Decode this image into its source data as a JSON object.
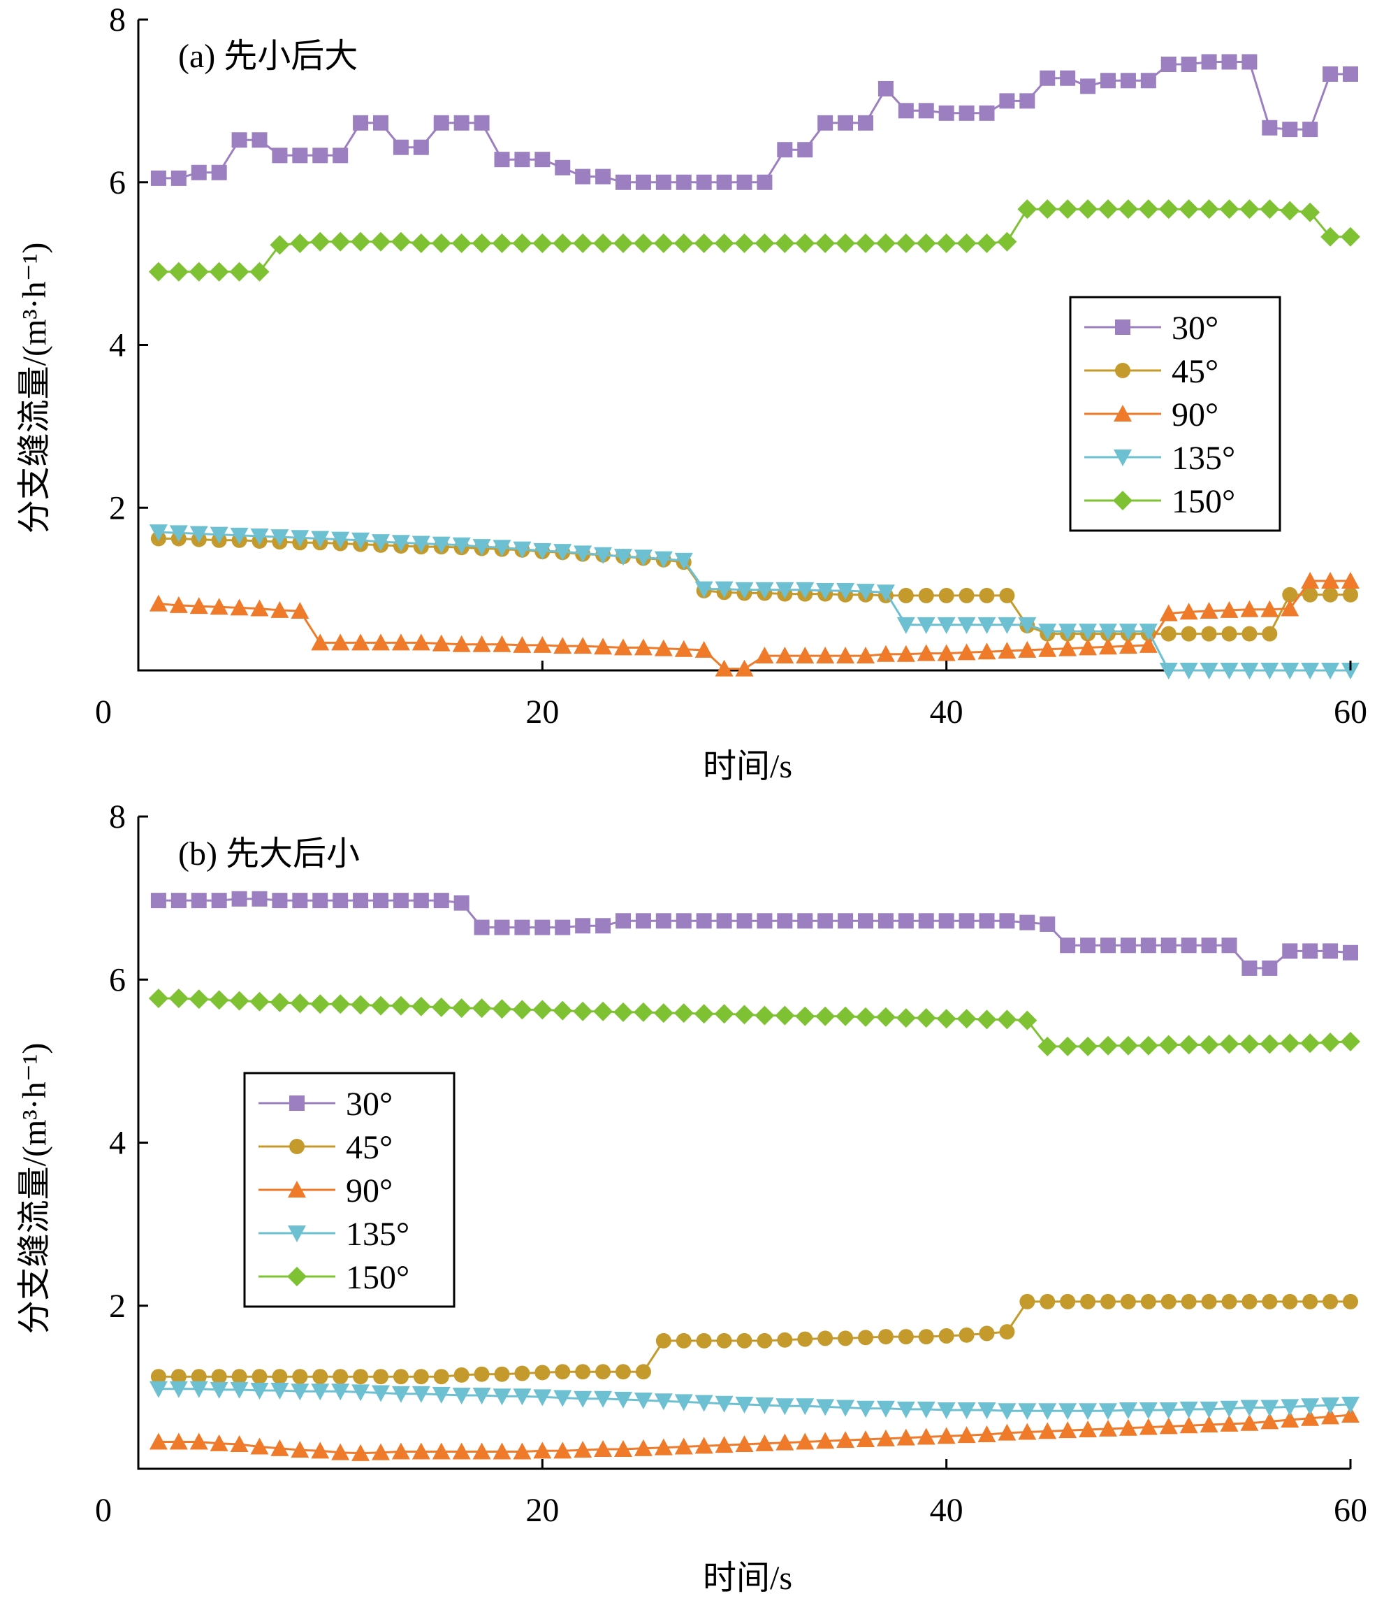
{
  "chart_data": [
    {
      "type": "line",
      "title": "(a) 先小后大",
      "xlabel": "时间/s",
      "ylabel": "分支缝流量/(m³·h⁻¹)",
      "xlim": [
        0,
        60
      ],
      "ylim": [
        0,
        8
      ],
      "xticks": [
        0,
        20,
        40,
        60
      ],
      "yticks": [
        0,
        2,
        4,
        6,
        8
      ],
      "legend_position": "right-middle",
      "x": [
        1,
        2,
        3,
        4,
        5,
        6,
        7,
        8,
        9,
        10,
        11,
        12,
        13,
        14,
        15,
        16,
        17,
        18,
        19,
        20,
        21,
        22,
        23,
        24,
        25,
        26,
        27,
        28,
        29,
        30,
        31,
        32,
        33,
        34,
        35,
        36,
        37,
        38,
        39,
        40,
        41,
        42,
        43,
        44,
        45,
        46,
        47,
        48,
        49,
        50,
        51,
        52,
        53,
        54,
        55,
        56,
        57,
        58,
        59,
        60
      ],
      "series": [
        {
          "name": "30°",
          "color": "#9b7fc1",
          "marker": "square",
          "values": [
            6.05,
            6.05,
            6.12,
            6.12,
            6.52,
            6.52,
            6.33,
            6.33,
            6.33,
            6.33,
            6.73,
            6.73,
            6.43,
            6.43,
            6.73,
            6.73,
            6.73,
            6.28,
            6.28,
            6.28,
            6.18,
            6.07,
            6.07,
            6.0,
            6.0,
            6.0,
            6.0,
            6.0,
            6.0,
            6.0,
            6.0,
            6.4,
            6.4,
            6.73,
            6.73,
            6.73,
            7.15,
            6.88,
            6.88,
            6.85,
            6.85,
            6.85,
            7.0,
            7.0,
            7.28,
            7.28,
            7.18,
            7.25,
            7.25,
            7.25,
            7.45,
            7.45,
            7.48,
            7.48,
            7.48,
            6.67,
            6.65,
            6.65,
            7.33,
            7.33
          ]
        },
        {
          "name": "45°",
          "color": "#c49a2c",
          "marker": "circle",
          "values": [
            1.62,
            1.62,
            1.61,
            1.6,
            1.6,
            1.59,
            1.58,
            1.57,
            1.57,
            1.56,
            1.55,
            1.54,
            1.53,
            1.52,
            1.52,
            1.51,
            1.5,
            1.49,
            1.48,
            1.46,
            1.45,
            1.43,
            1.42,
            1.4,
            1.38,
            1.36,
            1.33,
            0.98,
            0.96,
            0.95,
            0.95,
            0.94,
            0.94,
            0.94,
            0.93,
            0.93,
            0.92,
            0.92,
            0.92,
            0.92,
            0.92,
            0.92,
            0.92,
            0.55,
            0.45,
            0.45,
            0.45,
            0.45,
            0.45,
            0.45,
            0.45,
            0.45,
            0.45,
            0.45,
            0.45,
            0.45,
            0.93,
            0.93,
            0.93,
            0.93
          ]
        },
        {
          "name": "90°",
          "color": "#ef7a2a",
          "marker": "triangle-up",
          "values": [
            0.82,
            0.8,
            0.79,
            0.78,
            0.77,
            0.76,
            0.74,
            0.73,
            0.34,
            0.34,
            0.34,
            0.34,
            0.34,
            0.34,
            0.33,
            0.32,
            0.32,
            0.32,
            0.31,
            0.31,
            0.3,
            0.3,
            0.29,
            0.28,
            0.28,
            0.27,
            0.26,
            0.25,
            0.02,
            0.02,
            0.18,
            0.18,
            0.18,
            0.18,
            0.18,
            0.18,
            0.2,
            0.2,
            0.21,
            0.21,
            0.22,
            0.23,
            0.24,
            0.25,
            0.26,
            0.27,
            0.28,
            0.29,
            0.3,
            0.31,
            0.7,
            0.72,
            0.73,
            0.74,
            0.75,
            0.75,
            0.76,
            1.1,
            1.1,
            1.1
          ]
        },
        {
          "name": "135°",
          "color": "#6cc0d2",
          "marker": "triangle-down",
          "values": [
            1.7,
            1.69,
            1.68,
            1.67,
            1.66,
            1.65,
            1.64,
            1.63,
            1.62,
            1.61,
            1.6,
            1.58,
            1.57,
            1.56,
            1.55,
            1.54,
            1.52,
            1.51,
            1.49,
            1.47,
            1.46,
            1.44,
            1.42,
            1.4,
            1.39,
            1.37,
            1.35,
            1.0,
            1.0,
            0.99,
            0.99,
            0.99,
            0.99,
            0.98,
            0.98,
            0.97,
            0.96,
            0.56,
            0.56,
            0.56,
            0.56,
            0.56,
            0.56,
            0.56,
            0.48,
            0.48,
            0.48,
            0.48,
            0.48,
            0.48,
            0.0,
            0.0,
            0.0,
            0.0,
            0.0,
            0.0,
            0.0,
            0.0,
            0.0,
            0.0
          ]
        },
        {
          "name": "150°",
          "color": "#7ec234",
          "marker": "diamond",
          "values": [
            4.9,
            4.9,
            4.9,
            4.9,
            4.9,
            4.9,
            5.23,
            5.25,
            5.27,
            5.27,
            5.27,
            5.27,
            5.27,
            5.25,
            5.25,
            5.25,
            5.25,
            5.25,
            5.25,
            5.25,
            5.25,
            5.25,
            5.25,
            5.25,
            5.25,
            5.25,
            5.25,
            5.25,
            5.25,
            5.25,
            5.25,
            5.25,
            5.25,
            5.25,
            5.25,
            5.25,
            5.25,
            5.25,
            5.25,
            5.25,
            5.25,
            5.25,
            5.27,
            5.67,
            5.67,
            5.67,
            5.67,
            5.67,
            5.67,
            5.67,
            5.67,
            5.67,
            5.67,
            5.67,
            5.67,
            5.67,
            5.65,
            5.63,
            5.33,
            5.33
          ]
        }
      ]
    },
    {
      "type": "line",
      "title": "(b) 先大后小",
      "xlabel": "时间/s",
      "ylabel": "分支缝流量/(m³·h⁻¹)",
      "xlim": [
        0,
        60
      ],
      "ylim": [
        0,
        8
      ],
      "xticks": [
        0,
        20,
        40,
        60
      ],
      "yticks": [
        0,
        2,
        4,
        6,
        8
      ],
      "legend_position": "left-middle",
      "x": [
        1,
        2,
        3,
        4,
        5,
        6,
        7,
        8,
        9,
        10,
        11,
        12,
        13,
        14,
        15,
        16,
        17,
        18,
        19,
        20,
        21,
        22,
        23,
        24,
        25,
        26,
        27,
        28,
        29,
        30,
        31,
        32,
        33,
        34,
        35,
        36,
        37,
        38,
        39,
        40,
        41,
        42,
        43,
        44,
        45,
        46,
        47,
        48,
        49,
        50,
        51,
        52,
        53,
        54,
        55,
        56,
        57,
        58,
        59,
        60
      ],
      "series": [
        {
          "name": "30°",
          "color": "#9b7fc1",
          "marker": "square",
          "values": [
            6.97,
            6.97,
            6.97,
            6.97,
            6.99,
            6.99,
            6.97,
            6.97,
            6.97,
            6.97,
            6.97,
            6.97,
            6.97,
            6.97,
            6.97,
            6.94,
            6.64,
            6.64,
            6.64,
            6.64,
            6.64,
            6.66,
            6.66,
            6.72,
            6.72,
            6.72,
            6.72,
            6.72,
            6.72,
            6.72,
            6.72,
            6.72,
            6.72,
            6.72,
            6.72,
            6.72,
            6.72,
            6.72,
            6.72,
            6.72,
            6.72,
            6.72,
            6.72,
            6.7,
            6.68,
            6.42,
            6.42,
            6.42,
            6.42,
            6.42,
            6.42,
            6.42,
            6.42,
            6.42,
            6.14,
            6.14,
            6.35,
            6.35,
            6.35,
            6.33
          ]
        },
        {
          "name": "45°",
          "color": "#c49a2c",
          "marker": "circle",
          "values": [
            1.13,
            1.13,
            1.13,
            1.13,
            1.13,
            1.13,
            1.13,
            1.13,
            1.13,
            1.13,
            1.13,
            1.13,
            1.13,
            1.13,
            1.13,
            1.15,
            1.16,
            1.16,
            1.17,
            1.18,
            1.19,
            1.19,
            1.19,
            1.19,
            1.19,
            1.57,
            1.57,
            1.57,
            1.57,
            1.57,
            1.57,
            1.58,
            1.59,
            1.6,
            1.6,
            1.61,
            1.62,
            1.62,
            1.62,
            1.63,
            1.64,
            1.66,
            1.68,
            2.05,
            2.05,
            2.05,
            2.05,
            2.05,
            2.05,
            2.05,
            2.05,
            2.05,
            2.05,
            2.05,
            2.05,
            2.05,
            2.05,
            2.05,
            2.05,
            2.05
          ]
        },
        {
          "name": "90°",
          "color": "#ef7a2a",
          "marker": "triangle-up",
          "values": [
            0.33,
            0.33,
            0.33,
            0.31,
            0.3,
            0.27,
            0.25,
            0.23,
            0.22,
            0.2,
            0.19,
            0.2,
            0.21,
            0.21,
            0.21,
            0.21,
            0.21,
            0.21,
            0.21,
            0.22,
            0.22,
            0.23,
            0.24,
            0.24,
            0.25,
            0.26,
            0.27,
            0.28,
            0.29,
            0.3,
            0.31,
            0.32,
            0.33,
            0.34,
            0.35,
            0.36,
            0.37,
            0.38,
            0.39,
            0.4,
            0.41,
            0.42,
            0.44,
            0.45,
            0.46,
            0.47,
            0.48,
            0.49,
            0.5,
            0.51,
            0.52,
            0.53,
            0.54,
            0.55,
            0.56,
            0.58,
            0.6,
            0.62,
            0.64,
            0.66
          ]
        },
        {
          "name": "135°",
          "color": "#6cc0d2",
          "marker": "triangle-down",
          "values": [
            0.98,
            0.98,
            0.98,
            0.97,
            0.97,
            0.96,
            0.96,
            0.95,
            0.95,
            0.95,
            0.94,
            0.93,
            0.92,
            0.92,
            0.91,
            0.9,
            0.9,
            0.89,
            0.89,
            0.88,
            0.87,
            0.86,
            0.86,
            0.85,
            0.84,
            0.83,
            0.82,
            0.81,
            0.8,
            0.79,
            0.78,
            0.77,
            0.77,
            0.76,
            0.75,
            0.74,
            0.74,
            0.73,
            0.73,
            0.72,
            0.72,
            0.72,
            0.71,
            0.71,
            0.71,
            0.71,
            0.71,
            0.71,
            0.72,
            0.72,
            0.72,
            0.73,
            0.73,
            0.74,
            0.75,
            0.75,
            0.76,
            0.77,
            0.78,
            0.79
          ]
        },
        {
          "name": "150°",
          "color": "#7ec234",
          "marker": "diamond",
          "values": [
            5.77,
            5.77,
            5.76,
            5.75,
            5.74,
            5.73,
            5.72,
            5.71,
            5.7,
            5.7,
            5.69,
            5.68,
            5.68,
            5.67,
            5.66,
            5.65,
            5.65,
            5.64,
            5.63,
            5.63,
            5.62,
            5.61,
            5.61,
            5.6,
            5.6,
            5.59,
            5.59,
            5.58,
            5.58,
            5.57,
            5.56,
            5.56,
            5.55,
            5.55,
            5.55,
            5.54,
            5.54,
            5.53,
            5.53,
            5.52,
            5.52,
            5.51,
            5.51,
            5.5,
            5.18,
            5.18,
            5.18,
            5.19,
            5.19,
            5.19,
            5.2,
            5.2,
            5.2,
            5.21,
            5.21,
            5.21,
            5.22,
            5.22,
            5.23,
            5.24
          ]
        }
      ]
    }
  ]
}
